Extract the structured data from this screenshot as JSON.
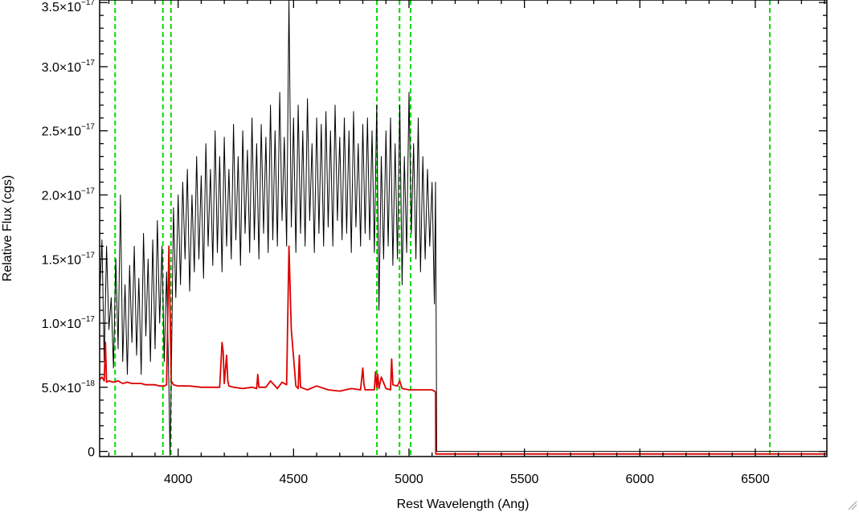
{
  "chart_data": {
    "type": "line",
    "xlabel": "Rest Wavelength (Ang)",
    "ylabel": "Relative Flux (cgs)",
    "xlim": [
      3660,
      6810
    ],
    "ylim": [
      -4e-19,
      3.52e-17
    ],
    "x_ticks": [
      4000,
      4500,
      5000,
      5500,
      6000,
      6500
    ],
    "y_ticks": [
      {
        "value": 0,
        "mantissa": "0",
        "exponent": ""
      },
      {
        "value": 5e-18,
        "mantissa": "5.0×10",
        "exponent": "−18"
      },
      {
        "value": 1e-17,
        "mantissa": "1.0×10",
        "exponent": "−17"
      },
      {
        "value": 1.5e-17,
        "mantissa": "1.5×10",
        "exponent": "−17"
      },
      {
        "value": 2e-17,
        "mantissa": "2.0×10",
        "exponent": "−17"
      },
      {
        "value": 2.5e-17,
        "mantissa": "2.5×10",
        "exponent": "−17"
      },
      {
        "value": 3e-17,
        "mantissa": "3.0×10",
        "exponent": "−17"
      },
      {
        "value": 3.5e-17,
        "mantissa": "3.5×10",
        "exponent": "−17"
      }
    ],
    "grid": false,
    "legend": "none",
    "colors": {
      "observed": "#000000",
      "model": "#dd0000",
      "lines": "#00dd00"
    },
    "marker_lines_x": [
      3727,
      3934,
      3969,
      4861,
      4959,
      5007,
      6563
    ],
    "series": [
      {
        "color": "#000000",
        "x": [
          3660,
          3670,
          3680,
          3690,
          3700,
          3710,
          3720,
          3730,
          3740,
          3750,
          3760,
          3770,
          3780,
          3790,
          3800,
          3810,
          3820,
          3830,
          3840,
          3850,
          3860,
          3870,
          3880,
          3890,
          3900,
          3910,
          3920,
          3930,
          3940,
          3950,
          3960,
          3965,
          3970,
          3980,
          3990,
          4000,
          4010,
          4020,
          4030,
          4040,
          4050,
          4060,
          4070,
          4080,
          4090,
          4100,
          4110,
          4120,
          4130,
          4140,
          4150,
          4160,
          4170,
          4180,
          4190,
          4200,
          4210,
          4220,
          4230,
          4240,
          4250,
          4260,
          4270,
          4280,
          4290,
          4300,
          4310,
          4320,
          4330,
          4340,
          4350,
          4360,
          4370,
          4380,
          4390,
          4400,
          4410,
          4420,
          4430,
          4440,
          4450,
          4460,
          4470,
          4480,
          4490,
          4500,
          4510,
          4520,
          4530,
          4540,
          4550,
          4560,
          4570,
          4580,
          4590,
          4600,
          4610,
          4620,
          4630,
          4640,
          4650,
          4660,
          4670,
          4680,
          4690,
          4700,
          4710,
          4720,
          4730,
          4740,
          4750,
          4760,
          4770,
          4780,
          4790,
          4800,
          4810,
          4820,
          4830,
          4840,
          4850,
          4860,
          4870,
          4880,
          4890,
          4900,
          4910,
          4920,
          4930,
          4940,
          4950,
          4960,
          4970,
          4980,
          4990,
          5000,
          5010,
          5020,
          5030,
          5040,
          5050,
          5060,
          5070,
          5080,
          5090,
          5100,
          5110,
          5115,
          5120,
          5200,
          5400,
          5600,
          5800,
          6000,
          6200,
          6400,
          6600,
          6810
        ],
        "y": [
          1.2e-17,
          1.65e-17,
          7e-18,
          1.6e-17,
          9.5e-18,
          1.2e-17,
          6.5e-18,
          1.5e-17,
          8e-18,
          2e-17,
          7e-18,
          1.3e-17,
          6e-18,
          1.45e-17,
          8.5e-18,
          1.6e-17,
          7.5e-18,
          1.35e-17,
          6e-18,
          1.7e-17,
          9e-18,
          1.5e-17,
          7e-18,
          1.65e-17,
          8e-18,
          1.8e-17,
          1e-17,
          1.6e-17,
          7e-18,
          1.4e-17,
          5e-18,
          -3e-19,
          5.5e-18,
          1.9e-17,
          1.2e-17,
          2e-17,
          1.3e-17,
          2.1e-17,
          1.5e-17,
          2.2e-17,
          1.25e-17,
          2e-17,
          1.4e-17,
          2.3e-17,
          1.5e-17,
          2.15e-17,
          1.35e-17,
          2.4e-17,
          1.6e-17,
          2.2e-17,
          1.45e-17,
          2.5e-17,
          1.55e-17,
          2.3e-17,
          1.4e-17,
          2.45e-17,
          1.6e-17,
          2.2e-17,
          1.5e-17,
          2.55e-17,
          1.65e-17,
          2.3e-17,
          1.45e-17,
          2.5e-17,
          1.7e-17,
          2.35e-17,
          1.55e-17,
          2.6e-17,
          1.65e-17,
          2.4e-17,
          1.5e-17,
          2.55e-17,
          1.7e-17,
          2.45e-17,
          1.55e-17,
          2.7e-17,
          1.65e-17,
          2.5e-17,
          1.6e-17,
          2.8e-17,
          1.8e-17,
          2.45e-17,
          1.6e-17,
          3.52e-17,
          1.75e-17,
          2.6e-17,
          1.55e-17,
          2.7e-17,
          1.7e-17,
          2.5e-17,
          1.6e-17,
          2.75e-17,
          1.8e-17,
          2.4e-17,
          1.55e-17,
          2.6e-17,
          1.7e-17,
          2.55e-17,
          1.6e-17,
          2.65e-17,
          1.75e-17,
          2.5e-17,
          1.6e-17,
          2.7e-17,
          1.8e-17,
          2.45e-17,
          1.65e-17,
          2.6e-17,
          1.7e-17,
          2.5e-17,
          1.55e-17,
          2.65e-17,
          1.75e-17,
          2.4e-17,
          1.6e-17,
          2.55e-17,
          1.7e-17,
          2.6e-17,
          1.65e-17,
          2.5e-17,
          1.55e-17,
          2.7e-17,
          1.1e-17,
          2.3e-17,
          1.5e-17,
          2.5e-17,
          1.6e-17,
          2.6e-17,
          1.45e-17,
          2.4e-17,
          1.5e-17,
          2.7e-17,
          1.3e-17,
          2.3e-17,
          1.55e-17,
          2.8e-17,
          1.7e-17,
          2.4e-17,
          1.5e-17,
          2.6e-17,
          1.4e-17,
          2.3e-17,
          1.5e-17,
          2.2e-17,
          1.6e-17,
          2.1e-17,
          1.15e-17,
          2.1e-17,
          0,
          0,
          0,
          0,
          0,
          0,
          0,
          0,
          0,
          0
        ]
      },
      {
        "color": "#dd0000",
        "x": [
          3660,
          3670,
          3680,
          3685,
          3690,
          3700,
          3720,
          3740,
          3760,
          3780,
          3800,
          3820,
          3840,
          3860,
          3880,
          3900,
          3920,
          3940,
          3950,
          3960,
          3965,
          3970,
          3980,
          4000,
          4050,
          4100,
          4150,
          4180,
          4190,
          4195,
          4200,
          4210,
          4215,
          4220,
          4240,
          4280,
          4320,
          4340,
          4345,
          4350,
          4380,
          4400,
          4430,
          4450,
          4470,
          4480,
          4490,
          4510,
          4520,
          4525,
          4530,
          4560,
          4600,
          4650,
          4700,
          4750,
          4790,
          4800,
          4805,
          4810,
          4850,
          4855,
          4861,
          4865,
          4870,
          4880,
          4900,
          4920,
          4925,
          4930,
          4950,
          4960,
          4970,
          5000,
          5050,
          5100,
          5110,
          5115,
          5116,
          5200,
          5400,
          5600,
          5800,
          6000,
          6200,
          6400,
          6600,
          6810
        ],
        "y": [
          5.6e-18,
          5.8e-18,
          5.5e-18,
          8.5e-18,
          5.4e-18,
          5.5e-18,
          5.4e-18,
          5.5e-18,
          5.3e-18,
          5.4e-18,
          5.3e-18,
          5.3e-18,
          5.3e-18,
          5.2e-18,
          5.2e-18,
          5.2e-18,
          5.1e-18,
          5.1e-18,
          5.2e-18,
          1.6e-17,
          1.1e-17,
          5.5e-18,
          5.2e-18,
          5.1e-18,
          5.1e-18,
          5e-18,
          5e-18,
          5e-18,
          8.5e-18,
          7.8e-18,
          5.3e-18,
          7.5e-18,
          5.5e-18,
          5.1e-18,
          5e-18,
          4.9e-18,
          5e-18,
          4.9e-18,
          6e-18,
          5e-18,
          5e-18,
          5.5e-18,
          4.9e-18,
          5.4e-18,
          5.2e-18,
          1.6e-17,
          9.5e-18,
          5.1e-18,
          4.9e-18,
          7.5e-18,
          5e-18,
          4.8e-18,
          5.1e-18,
          4.8e-18,
          4.7e-18,
          4.9e-18,
          4.8e-18,
          6.5e-18,
          5.2e-18,
          4.8e-18,
          4.8e-18,
          6.2e-18,
          5e-18,
          6e-18,
          4.9e-18,
          5.8e-18,
          4.9e-18,
          4.8e-18,
          7.2e-18,
          5.2e-18,
          5.1e-18,
          5.5e-18,
          4.9e-18,
          4.8e-18,
          4.8e-18,
          4.8e-18,
          4.7e-18,
          4.6e-18,
          -2e-19,
          -2e-19,
          -2e-19,
          -2e-19,
          -2e-19,
          -2e-19,
          -2e-19,
          -2e-19,
          -2e-19,
          -2e-19
        ]
      }
    ]
  }
}
